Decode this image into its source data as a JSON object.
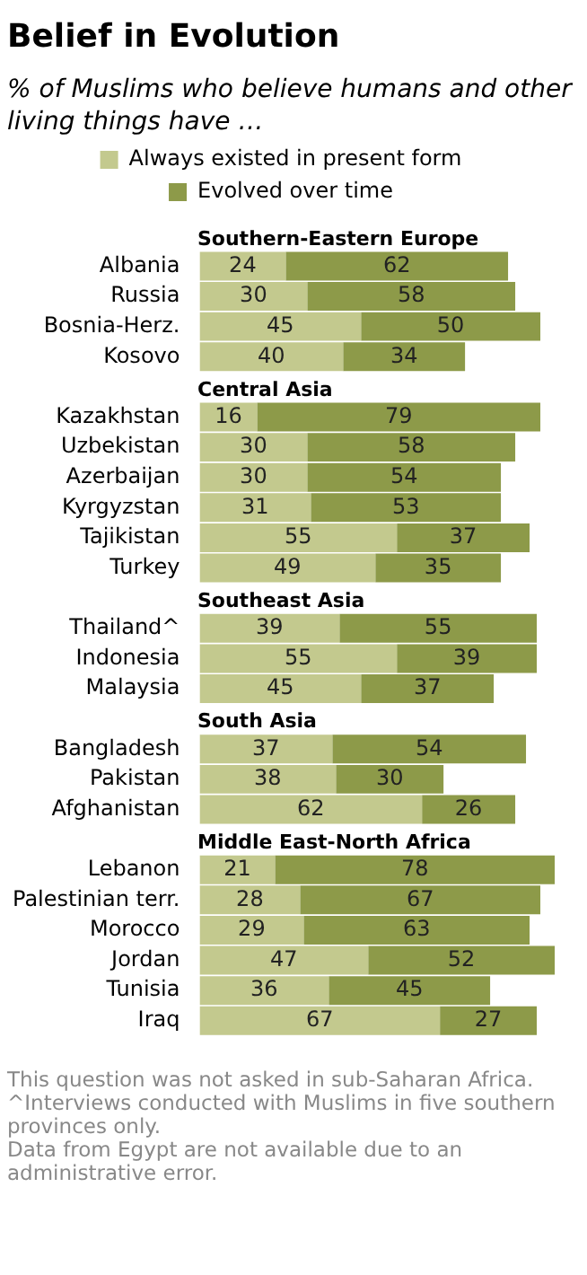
{
  "chart_data": {
    "type": "bar",
    "orientation": "horizontal",
    "stacked": true,
    "title": "Belief in Evolution",
    "subtitle": "% of Muslims who believe humans and other living things have …",
    "categories": [
      "Southern-Eastern Europe",
      "Albania",
      "Russia",
      "Bosnia-Herz.",
      "Kosovo",
      "Central Asia",
      "Kazakhstan",
      "Uzbekistan",
      "Azerbaijan",
      "Kyrgyzstan",
      "Tajikistan",
      "Turkey",
      "Southeast Asia",
      "Thailand^",
      "Indonesia",
      "Malaysia",
      "South Asia",
      "Bangladesh",
      "Pakistan",
      "Afghanistan",
      "Middle East-North Africa",
      "Lebanon",
      "Palestinian terr.",
      "Morocco",
      "Jordan",
      "Tunisia",
      "Iraq"
    ],
    "series": [
      {
        "name": "Always existed in present form",
        "color": "#c3c98e",
        "values": [
          null,
          24,
          30,
          45,
          40,
          null,
          16,
          30,
          30,
          31,
          55,
          49,
          null,
          39,
          55,
          45,
          null,
          37,
          38,
          62,
          null,
          21,
          28,
          29,
          47,
          36,
          67
        ]
      },
      {
        "name": "Evolved over time",
        "color": "#8d9a49",
        "values": [
          null,
          62,
          58,
          50,
          34,
          null,
          79,
          58,
          54,
          53,
          37,
          35,
          null,
          55,
          39,
          37,
          null,
          54,
          30,
          26,
          null,
          78,
          67,
          63,
          52,
          45,
          27
        ]
      }
    ],
    "data_labels": true,
    "grid": false,
    "legend": "top",
    "tick_labels": "y",
    "annotations": [
      "This question was not asked in sub-Saharan Africa.",
      "^Interviews conducted with Muslims in five southern provinces only.",
      "Data from Egypt are not available due to an administrative error."
    ]
  }
}
